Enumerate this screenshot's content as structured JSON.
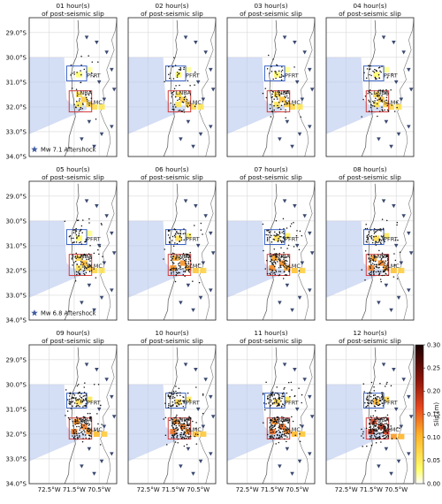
{
  "chart_data": {
    "type": "heatmap",
    "panel_titles": [
      "01 hour(s)\nof post-seismic slip",
      "02 hour(s)\nof post-seismic slip",
      "03 hour(s)\nof post-seismic slip",
      "04 hour(s)\nof post-seismic slip",
      "05 hour(s)\nof post-seismic slip",
      "06 hour(s)\nof post-seismic slip",
      "07 hour(s)\nof post-seismic slip",
      "08 hour(s)\nof post-seismic slip",
      "09 hour(s)\nof post-seismic slip",
      "10 hour(s)\nof post-seismic slip",
      "11 hour(s)\nof post-seismic slip",
      "12 hour(s)\nof post-seismic slip"
    ],
    "hours": [
      1,
      2,
      3,
      4,
      5,
      6,
      7,
      8,
      9,
      10,
      11,
      12
    ],
    "y_ticks": [
      "29.0°S",
      "30.0°S",
      "31.0°S",
      "32.0°S",
      "33.0°S",
      "34.0°S"
    ],
    "y_tick_values": [
      -29.0,
      -30.0,
      -31.0,
      -32.0,
      -33.0,
      -34.0
    ],
    "x_ticks": [
      "72.5°W",
      "71.5°W",
      "70.5°W"
    ],
    "x_tick_values": [
      -72.5,
      -71.5,
      -70.5
    ],
    "xlim": [
      -73.3,
      -69.8
    ],
    "ylim": [
      -34.0,
      -28.4
    ],
    "grid": true,
    "legend_labels": [
      "Mw 7.1 Aftershock",
      "Mw 6.8 Aftershock"
    ],
    "legend_panels": [
      0,
      4
    ],
    "region_labels": [
      {
        "name": "PFRT",
        "lon": -71.0,
        "lat": -30.8
      },
      {
        "name": "LNBA",
        "lon": -71.4,
        "lat": -31.5
      },
      {
        "name": "SLMC",
        "lon": -71.0,
        "lat": -31.9
      }
    ],
    "boxes": [
      {
        "name": "north-box",
        "lon": [
          -71.8,
          -71.0
        ],
        "lat": [
          -30.35,
          -30.95
        ],
        "color": "#3a63c4"
      },
      {
        "name": "south-box",
        "lon": [
          -71.7,
          -70.8
        ],
        "lat": [
          -31.35,
          -32.2
        ],
        "color": "#d43b3b"
      }
    ],
    "colorbar": {
      "label": "Slip (m)",
      "min": 0.0,
      "max": 0.3,
      "ticks": [
        "0.00",
        "0.05",
        "0.10",
        "0.15",
        "0.20",
        "0.25",
        "0.30"
      ]
    },
    "slip_patches_by_hour": {
      "1": [
        [
          -71.3,
          -30.7,
          0.03
        ],
        [
          -70.9,
          -30.5,
          0.02
        ],
        [
          -71.3,
          -31.5,
          0.06
        ],
        [
          -71.1,
          -31.7,
          0.08
        ],
        [
          -70.9,
          -31.9,
          0.07
        ],
        [
          -70.7,
          -32.0,
          0.06
        ],
        [
          -70.4,
          -32.0,
          0.05
        ],
        [
          -71.3,
          -31.9,
          0.05
        ]
      ],
      "6": [
        [
          -71.3,
          -30.7,
          0.05
        ],
        [
          -70.9,
          -30.6,
          0.04
        ],
        [
          -71.4,
          -31.5,
          0.09
        ],
        [
          -71.1,
          -31.7,
          0.1
        ],
        [
          -70.9,
          -31.9,
          0.09
        ],
        [
          -70.6,
          -32.0,
          0.07
        ],
        [
          -70.3,
          -32.0,
          0.06
        ],
        [
          -71.5,
          -31.9,
          0.1
        ]
      ],
      "12": [
        [
          -71.3,
          -30.7,
          0.07
        ],
        [
          -70.9,
          -30.6,
          0.05
        ],
        [
          -71.4,
          -31.5,
          0.12
        ],
        [
          -71.1,
          -31.7,
          0.13
        ],
        [
          -70.9,
          -31.9,
          0.11
        ],
        [
          -70.6,
          -32.1,
          0.08
        ],
        [
          -70.3,
          -32.1,
          0.07
        ],
        [
          -71.5,
          -31.9,
          0.13
        ]
      ]
    },
    "stations_lonlat": [
      [
        -71.0,
        -29.2
      ],
      [
        -70.6,
        -29.4
      ],
      [
        -70.2,
        -29.8
      ],
      [
        -70.0,
        -30.5
      ],
      [
        -70.5,
        -31.0
      ],
      [
        -69.9,
        -31.3
      ],
      [
        -70.3,
        -31.7
      ],
      [
        -70.9,
        -32.6
      ],
      [
        -70.4,
        -33.1
      ],
      [
        -71.2,
        -33.3
      ],
      [
        -70.7,
        -33.6
      ],
      [
        -70.0,
        -32.8
      ]
    ],
    "mainshocks_lonlat": [
      [
        -72.4,
        -31.75
      ],
      [
        -72.4,
        -33.55
      ]
    ]
  }
}
